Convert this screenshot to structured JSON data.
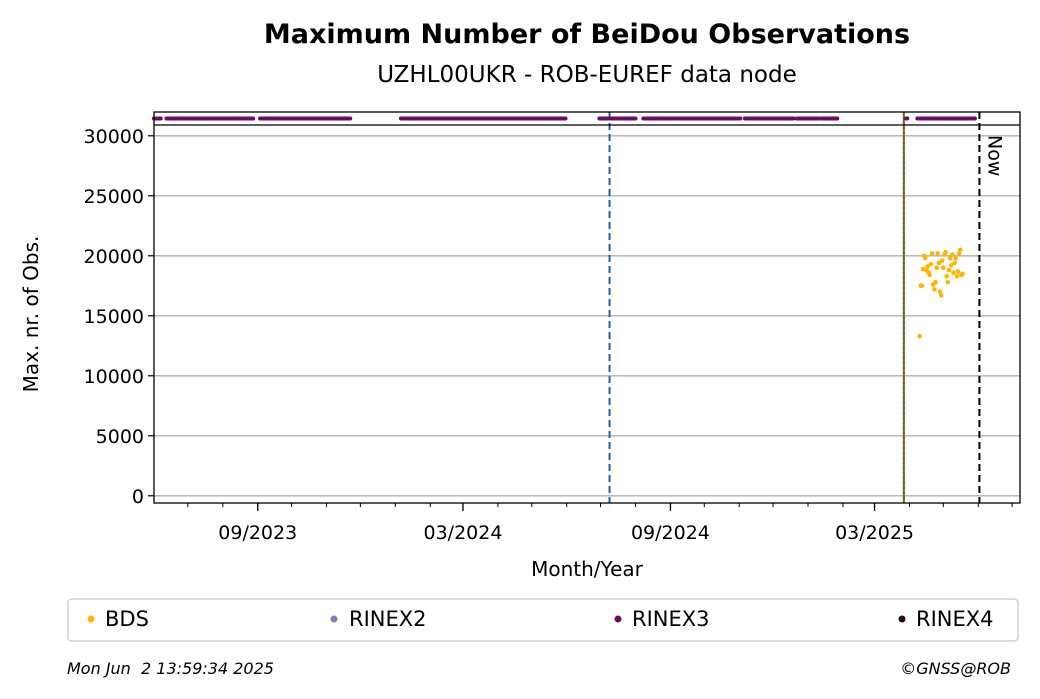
{
  "chart_data": {
    "type": "scatter",
    "title": "Maximum Number of BeiDou Observations",
    "subtitle": "UZHL00UKR - ROB-EUREF data node",
    "xlabel": "Month/Year",
    "ylabel": "Max. nr. of Obs.",
    "x_range": [
      "2023-06-01",
      "2025-07-08"
    ],
    "ylim": [
      -600,
      30900
    ],
    "y_ticks": [
      0,
      5000,
      10000,
      15000,
      20000,
      25000,
      30000
    ],
    "x_ticks": [
      {
        "date": "2023-09-01",
        "label": "09/2023"
      },
      {
        "date": "2024-03-01",
        "label": "03/2024"
      },
      {
        "date": "2024-09-01",
        "label": "09/2024"
      },
      {
        "date": "2025-03-01",
        "label": "03/2025"
      }
    ],
    "grid": "horizontal",
    "legend_placement": "bottom",
    "vlines": [
      {
        "date": "2024-07-09",
        "color": "#1f5fa8",
        "style": "dashed"
      },
      {
        "date": "2025-03-27",
        "color": "#2e8b2e",
        "style": "solid"
      },
      {
        "date": "2025-03-27",
        "color": "#d62728",
        "style": "dotted"
      },
      {
        "date": "2025-06-02",
        "color": "#000000",
        "style": "dashed",
        "label": "Now"
      }
    ],
    "availability": {
      "series": "RINEX3",
      "periods": [
        [
          "2023-06-01",
          "2023-06-07"
        ],
        [
          "2023-06-12",
          "2023-08-28"
        ],
        [
          "2023-09-03",
          "2023-11-22"
        ],
        [
          "2024-01-06",
          "2024-05-31"
        ],
        [
          "2024-06-30",
          "2024-08-01"
        ],
        [
          "2024-08-08",
          "2024-11-02"
        ],
        [
          "2024-11-06",
          "2024-12-19"
        ],
        [
          "2024-12-22",
          "2025-01-11"
        ],
        [
          "2025-01-13",
          "2025-01-27"
        ],
        [
          "2025-03-29",
          "2025-03-30"
        ],
        [
          "2025-04-08",
          "2025-05-29"
        ]
      ]
    },
    "series": [
      {
        "name": "BDS",
        "color": "#ffb400",
        "points": [
          [
            "2025-04-10",
            13300
          ],
          [
            "2025-04-11",
            17500
          ],
          [
            "2025-04-12",
            17500
          ],
          [
            "2025-04-13",
            18900
          ],
          [
            "2025-04-14",
            20000
          ],
          [
            "2025-04-15",
            19800
          ],
          [
            "2025-04-16",
            18800
          ],
          [
            "2025-04-17",
            19100
          ],
          [
            "2025-04-18",
            18600
          ],
          [
            "2025-04-19",
            18400
          ],
          [
            "2025-04-20",
            19300
          ],
          [
            "2025-04-21",
            20200
          ],
          [
            "2025-04-22",
            17600
          ],
          [
            "2025-04-23",
            17200
          ],
          [
            "2025-04-24",
            17800
          ],
          [
            "2025-04-25",
            19000
          ],
          [
            "2025-04-26",
            20200
          ],
          [
            "2025-04-27",
            19400
          ],
          [
            "2025-04-28",
            17000
          ],
          [
            "2025-04-29",
            16700
          ],
          [
            "2025-04-30",
            19600
          ],
          [
            "2025-05-01",
            19000
          ],
          [
            "2025-05-02",
            20100
          ],
          [
            "2025-05-03",
            20300
          ],
          [
            "2025-05-04",
            18300
          ],
          [
            "2025-05-05",
            17800
          ],
          [
            "2025-05-06",
            18800
          ],
          [
            "2025-05-07",
            19800
          ],
          [
            "2025-05-08",
            19200
          ],
          [
            "2025-05-09",
            20100
          ],
          [
            "2025-05-10",
            18600
          ],
          [
            "2025-05-11",
            19400
          ],
          [
            "2025-05-12",
            19800
          ],
          [
            "2025-05-13",
            18300
          ],
          [
            "2025-05-14",
            18700
          ],
          [
            "2025-05-15",
            20200
          ],
          [
            "2025-05-16",
            20500
          ],
          [
            "2025-05-17",
            18400
          ],
          [
            "2025-05-18",
            18500
          ]
        ]
      }
    ],
    "legend": [
      {
        "name": "BDS",
        "color": "#ffb400"
      },
      {
        "name": "RINEX2",
        "color": "#7b7fc0"
      },
      {
        "name": "RINEX3",
        "color": "#6e0b64"
      },
      {
        "name": "RINEX4",
        "color": "#2b0418"
      }
    ]
  },
  "footer": {
    "timestamp": "Mon Jun  2 13:59:34 2025",
    "credit": "©GNSS@ROB"
  }
}
